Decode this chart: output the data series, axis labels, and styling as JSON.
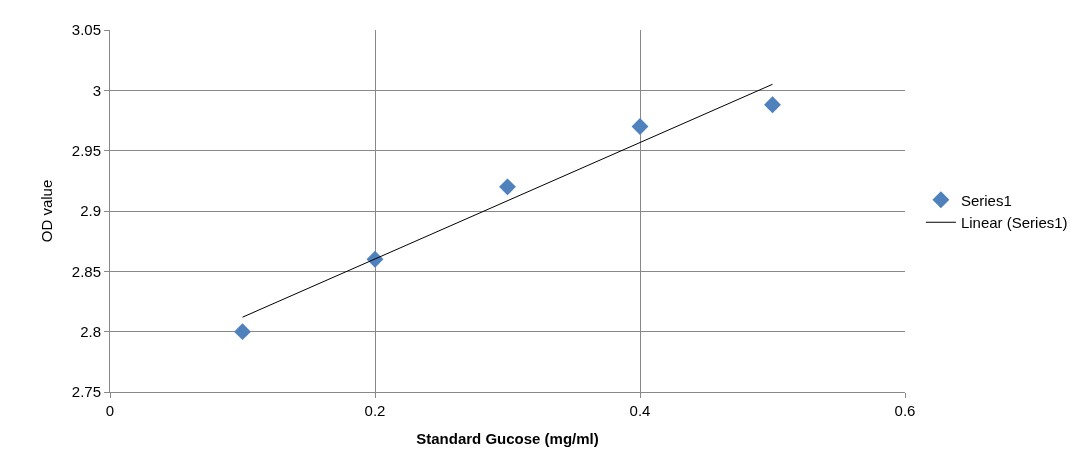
{
  "chart_data": {
    "type": "scatter",
    "xlabel": "Standard Gucose (mg/ml)",
    "ylabel": "OD value",
    "xlim": [
      0,
      0.6
    ],
    "xticks": [
      0,
      0.2,
      0.4,
      0.6
    ],
    "ylim": [
      2.75,
      3.05
    ],
    "yticks": [
      2.75,
      2.8,
      2.85,
      2.9,
      2.95,
      3,
      3.05
    ],
    "grid": true,
    "legend": "right",
    "series": [
      {
        "name": "Series1",
        "marker": "diamond",
        "color": "#4f81bd",
        "x": [
          0.1,
          0.2,
          0.3,
          0.4,
          0.5
        ],
        "values": [
          2.8,
          2.86,
          2.92,
          2.97,
          2.988
        ]
      },
      {
        "name": "Linear (Series1)",
        "type": "line",
        "marker": "none",
        "color": "#000000",
        "x": [
          0.1,
          0.5
        ],
        "values": [
          2.812,
          3.005
        ]
      }
    ]
  }
}
